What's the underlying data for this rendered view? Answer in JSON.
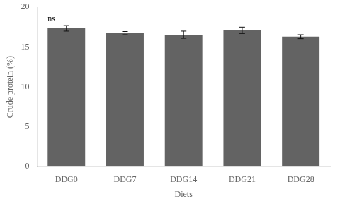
{
  "chart_data": {
    "type": "bar",
    "categories": [
      "DDG0",
      "DDG7",
      "DDG14",
      "DDG21",
      "DDG28"
    ],
    "values": [
      17.35,
      16.75,
      16.55,
      17.1,
      16.3
    ],
    "errors": [
      0.35,
      0.2,
      0.45,
      0.4,
      0.25
    ],
    "color": "#636363",
    "xlabel": "Diets",
    "ylabel": "Crude protein (%)",
    "ylim": [
      0,
      20
    ],
    "yticks": [
      0,
      5,
      10,
      15,
      20
    ],
    "annotations": [
      {
        "text": "ns",
        "category": "DDG0"
      }
    ],
    "grid": false
  }
}
